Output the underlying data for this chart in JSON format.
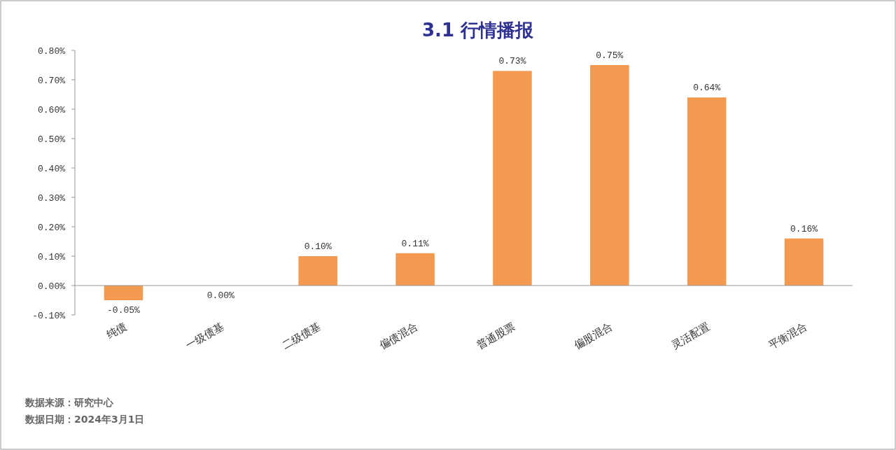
{
  "chart_data": {
    "type": "bar",
    "title": "3.1 行情播报",
    "categories": [
      "纯债",
      "一级债基",
      "二级债基",
      "偏债混合",
      "普通股票",
      "偏股混合",
      "灵活配置",
      "平衡混合"
    ],
    "values": [
      -0.05,
      0,
      0.1,
      0.11,
      0.73,
      0.75,
      0.64,
      0.16
    ],
    "value_labels": [
      "-0.05%",
      "0.00%",
      "0.10%",
      "0.11%",
      "0.73%",
      "0.75%",
      "0.64%",
      "0.16%"
    ],
    "color": "#f39a50",
    "ylim": [
      -0.1,
      0.8
    ],
    "yticks": [
      {
        "value": -0.1,
        "label": "-0.10%"
      },
      {
        "value": 0,
        "label": "0.00%"
      },
      {
        "value": 0.1,
        "label": "0.10%"
      },
      {
        "value": 0.2,
        "label": "0.20%"
      },
      {
        "value": 0.3,
        "label": "0.30%"
      },
      {
        "value": 0.4,
        "label": "0.40%"
      },
      {
        "value": 0.5,
        "label": "0.50%"
      },
      {
        "value": 0.6,
        "label": "0.60%"
      },
      {
        "value": 0.7,
        "label": "0.70%"
      },
      {
        "value": 0.8,
        "label": "0.80%"
      }
    ],
    "annotations": [
      "数据来源：研究中心",
      "数据日期：2024年3月1日"
    ]
  }
}
